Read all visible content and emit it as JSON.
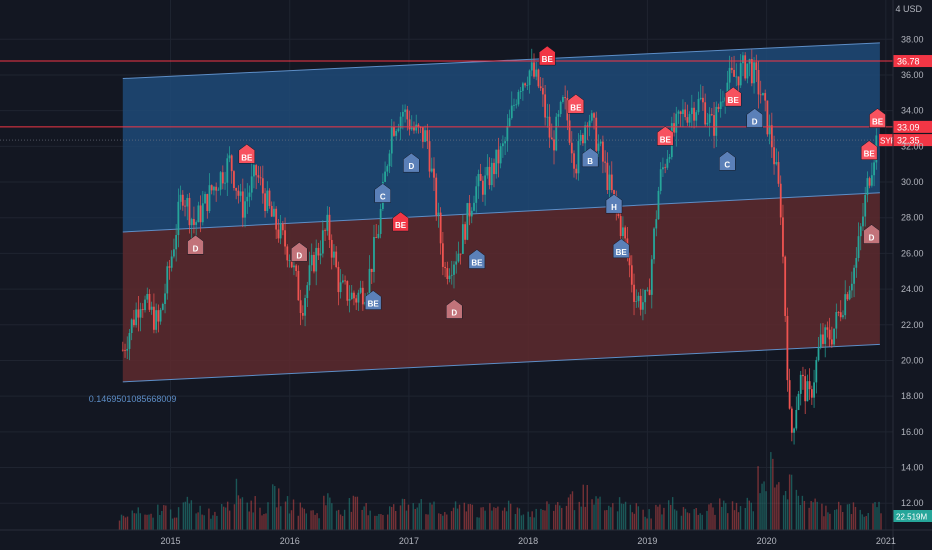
{
  "chart_data": {
    "type": "candlestick",
    "symbol": "SYF",
    "currency": "USD",
    "x_ticks": [
      "2015",
      "2016",
      "2017",
      "2018",
      "2019",
      "2020",
      "2021"
    ],
    "y_ticks": [
      "38.00",
      "36.00",
      "34.00",
      "32.00",
      "30.00",
      "28.00",
      "26.00",
      "24.00",
      "22.00",
      "20.00",
      "18.00",
      "16.00",
      "14.00",
      "12.00"
    ],
    "top_edge_value": "4",
    "ylim": [
      10.5,
      40.2
    ],
    "xlim": [
      2013.57,
      2021.06
    ],
    "horizontal_lines": [
      {
        "label": "36.78",
        "value": 36.78,
        "color": "#f23645"
      },
      {
        "label": "33.09",
        "value": 33.09,
        "color": "#f23645"
      }
    ],
    "last_price": {
      "label": "32.35",
      "value": 32.35,
      "symbol_label": "SYF"
    },
    "volume_label": "22.519M",
    "channel": {
      "x_start": 2014.6,
      "x_end": 2020.95,
      "upper": [
        35.8,
        37.8
      ],
      "middle": [
        27.2,
        29.4
      ],
      "lower": [
        18.8,
        20.9
      ]
    },
    "channel_note": "0.1469501085668009",
    "price_series": [
      [
        2014.6,
        20.6
      ],
      [
        2014.75,
        23.5
      ],
      [
        2014.9,
        22.0
      ],
      [
        2015.0,
        25.5
      ],
      [
        2015.1,
        29.5
      ],
      [
        2015.2,
        27.6
      ],
      [
        2015.35,
        29.6
      ],
      [
        2015.5,
        31.2
      ],
      [
        2015.6,
        28.5
      ],
      [
        2015.72,
        30.5
      ],
      [
        2015.85,
        28.0
      ],
      [
        2016.0,
        26.0
      ],
      [
        2016.1,
        23.0
      ],
      [
        2016.2,
        25.6
      ],
      [
        2016.32,
        27.5
      ],
      [
        2016.42,
        24.0
      ],
      [
        2016.55,
        23.5
      ],
      [
        2016.65,
        24.2
      ],
      [
        2016.75,
        27.6
      ],
      [
        2016.85,
        33.0
      ],
      [
        2016.95,
        34.0
      ],
      [
        2017.05,
        32.8
      ],
      [
        2017.15,
        32.5
      ],
      [
        2017.3,
        25.0
      ],
      [
        2017.42,
        26.2
      ],
      [
        2017.55,
        29.6
      ],
      [
        2017.65,
        30.0
      ],
      [
        2017.8,
        32.0
      ],
      [
        2017.92,
        35.5
      ],
      [
        2018.02,
        36.3
      ],
      [
        2018.1,
        35.2
      ],
      [
        2018.2,
        32.0
      ],
      [
        2018.3,
        34.5
      ],
      [
        2018.4,
        31.0
      ],
      [
        2018.5,
        34.0
      ],
      [
        2018.6,
        31.8
      ],
      [
        2018.7,
        29.3
      ],
      [
        2018.8,
        27.0
      ],
      [
        2018.9,
        23.5
      ],
      [
        2019.0,
        23.2
      ],
      [
        2019.1,
        30.0
      ],
      [
        2019.2,
        32.5
      ],
      [
        2019.3,
        33.8
      ],
      [
        2019.45,
        34.5
      ],
      [
        2019.55,
        33.0
      ],
      [
        2019.65,
        35.5
      ],
      [
        2019.75,
        36.0
      ],
      [
        2019.85,
        36.7
      ],
      [
        2019.95,
        35.0
      ],
      [
        2020.05,
        32.0
      ],
      [
        2020.12,
        28.5
      ],
      [
        2020.2,
        15.5
      ],
      [
        2020.28,
        19.0
      ],
      [
        2020.36,
        17.8
      ],
      [
        2020.45,
        21.0
      ],
      [
        2020.55,
        21.5
      ],
      [
        2020.65,
        23.5
      ],
      [
        2020.75,
        25.5
      ],
      [
        2020.85,
        30.0
      ],
      [
        2020.92,
        32.35
      ]
    ],
    "volume_series": [
      3,
      4,
      3,
      5,
      4,
      6,
      5,
      4,
      7,
      9,
      6,
      5,
      8,
      6,
      5,
      4,
      7,
      5,
      6,
      5,
      4,
      5,
      6,
      7,
      5,
      4,
      5,
      6,
      4,
      5,
      6,
      5,
      4,
      5,
      6,
      7,
      8,
      6,
      5,
      6,
      5,
      4,
      5,
      6,
      5,
      4,
      5,
      6,
      5,
      6,
      12,
      14,
      10,
      8,
      6,
      5,
      6,
      5,
      4,
      5
    ],
    "annotations": [
      {
        "x": 2015.64,
        "y": 31.5,
        "label": "BE",
        "color": "#f7525f"
      },
      {
        "x": 2015.21,
        "y": 26.4,
        "label": "D",
        "color": "#c2737a"
      },
      {
        "x": 2016.08,
        "y": 26.0,
        "label": "D",
        "color": "#c2737a"
      },
      {
        "x": 2016.78,
        "y": 29.3,
        "label": "C",
        "color": "#5b80b8"
      },
      {
        "x": 2016.7,
        "y": 23.3,
        "label": "BE",
        "color": "#5b80b8"
      },
      {
        "x": 2016.93,
        "y": 27.7,
        "label": "BE",
        "color": "#f23645"
      },
      {
        "x": 2017.02,
        "y": 31.0,
        "label": "D",
        "color": "#5b80b8"
      },
      {
        "x": 2017.38,
        "y": 22.8,
        "label": "D",
        "color": "#c2737a"
      },
      {
        "x": 2017.57,
        "y": 25.6,
        "label": "BE",
        "color": "#5b80b8"
      },
      {
        "x": 2018.16,
        "y": 37.0,
        "label": "BE",
        "color": "#f23645"
      },
      {
        "x": 2018.4,
        "y": 34.3,
        "label": "BE",
        "color": "#f7525f"
      },
      {
        "x": 2018.52,
        "y": 31.3,
        "label": "B",
        "color": "#5b80b8"
      },
      {
        "x": 2018.72,
        "y": 28.7,
        "label": "H",
        "color": "#5b80b8"
      },
      {
        "x": 2018.78,
        "y": 26.2,
        "label": "BE",
        "color": "#5b80b8"
      },
      {
        "x": 2019.15,
        "y": 32.5,
        "label": "BE",
        "color": "#f7525f"
      },
      {
        "x": 2019.72,
        "y": 34.7,
        "label": "BE",
        "color": "#f7525f"
      },
      {
        "x": 2019.9,
        "y": 33.5,
        "label": "D",
        "color": "#5b80b8"
      },
      {
        "x": 2019.67,
        "y": 31.1,
        "label": "C",
        "color": "#5b80b8"
      },
      {
        "x": 2020.86,
        "y": 31.7,
        "label": "BE",
        "color": "#f7525f"
      },
      {
        "x": 2020.93,
        "y": 33.5,
        "label": "BE",
        "color": "#f7525f"
      },
      {
        "x": 2020.88,
        "y": 27.0,
        "label": "D",
        "color": "#c2737a"
      }
    ],
    "colors": {
      "background": "#131722",
      "up": "#26a69a",
      "down": "#ef5350",
      "channel_upper_fill": "#1e4a78",
      "channel_lower_fill": "#5e2a2e",
      "channel_line": "#5d8ec7",
      "grid": "#1f2430",
      "axis_text": "#b2b5be"
    }
  }
}
